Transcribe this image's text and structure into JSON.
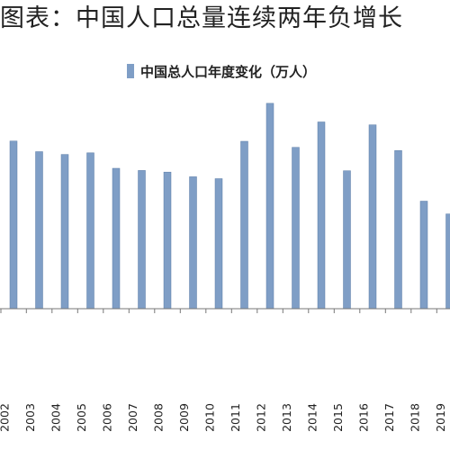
{
  "title": "图表：中国人口总量连续两年负增长",
  "chart_data": {
    "type": "bar",
    "title": "图表：中国人口总量连续两年负增长",
    "legend": {
      "label": "中国总人口年度变化（万人）",
      "placement": "top"
    },
    "categories": [
      "2002",
      "2003",
      "2004",
      "2005",
      "2006",
      "2007",
      "2008",
      "2009",
      "2010",
      "2011",
      "2012",
      "2013",
      "2014",
      "2015",
      "2016",
      "2017",
      "2018",
      "2019"
    ],
    "series": [
      {
        "name": "中国总人口年度变化（万人）",
        "values": [
          826,
          774,
          760,
          768,
          692,
          681,
          673,
          650,
          641,
          825,
          1012,
          795,
          920,
          680,
          906,
          779,
          530,
          467
        ]
      }
    ],
    "colors": {
      "bar": "#7f9ec6",
      "bar_edge": "#5f7fa8",
      "axis": "#777777"
    },
    "xlabel": "",
    "ylabel": "",
    "grid": false
  }
}
